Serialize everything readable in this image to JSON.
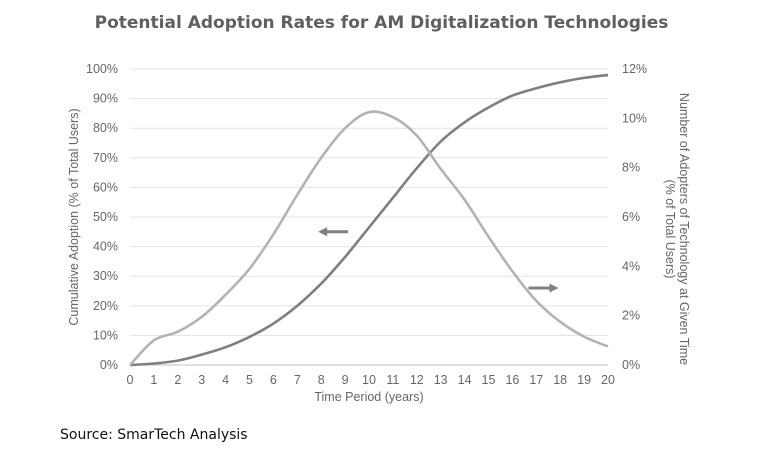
{
  "title": "Potential Adoption Rates for AM Digitalization Technologies",
  "source": "Source: SmarTech Analysis",
  "chart_data": {
    "type": "line",
    "title": "Potential Adoption Rates for AM Digitalization Technologies",
    "xlabel": "Time Period (years)",
    "ylabel_left": "Cumulative Adoption (% of Total Users)",
    "ylabel_right_lines": [
      "Number of Adopters of Technology at Given Time",
      "(% of Total Users)"
    ],
    "x": [
      0,
      1,
      2,
      3,
      4,
      5,
      6,
      7,
      8,
      9,
      10,
      11,
      12,
      13,
      14,
      15,
      16,
      17,
      18,
      19,
      20
    ],
    "x_tick_labels": [
      "0",
      "1",
      "2",
      "3",
      "4",
      "5",
      "6",
      "7",
      "8",
      "9",
      "10",
      "11",
      "12",
      "13",
      "14",
      "15",
      "16",
      "17",
      "18",
      "19",
      "20"
    ],
    "y_left_ticks": [
      "0%",
      "10%",
      "20%",
      "30%",
      "40%",
      "50%",
      "60%",
      "70%",
      "80%",
      "90%",
      "100%"
    ],
    "y_right_ticks": [
      "0%",
      "2%",
      "4%",
      "6%",
      "8%",
      "10%",
      "12%"
    ],
    "ylim_left": [
      0,
      100
    ],
    "ylim_right": [
      0,
      12
    ],
    "grid": true,
    "series": [
      {
        "axis": "left",
        "color": "#7f7f7f",
        "values": [
          0,
          0.5,
          1.5,
          3.5,
          6,
          9.5,
          14,
          20,
          27.5,
          36.5,
          46.5,
          56.5,
          66.5,
          75.5,
          82,
          87,
          91,
          93.5,
          95.5,
          97,
          98
        ]
      },
      {
        "axis": "right",
        "color": "#b3b3b3",
        "values": [
          0,
          1.0,
          1.35,
          1.95,
          2.85,
          3.9,
          5.3,
          6.9,
          8.4,
          9.6,
          10.25,
          10.05,
          9.3,
          7.95,
          6.7,
          5.2,
          3.8,
          2.6,
          1.75,
          1.15,
          0.75
        ]
      }
    ],
    "annotations": [
      {
        "type": "arrow",
        "direction": "left",
        "points_to": "left axis",
        "at": [
          8.5,
          45
        ]
      },
      {
        "type": "arrow",
        "direction": "right",
        "points_to": "right axis",
        "at": [
          17.3,
          26
        ]
      }
    ]
  }
}
